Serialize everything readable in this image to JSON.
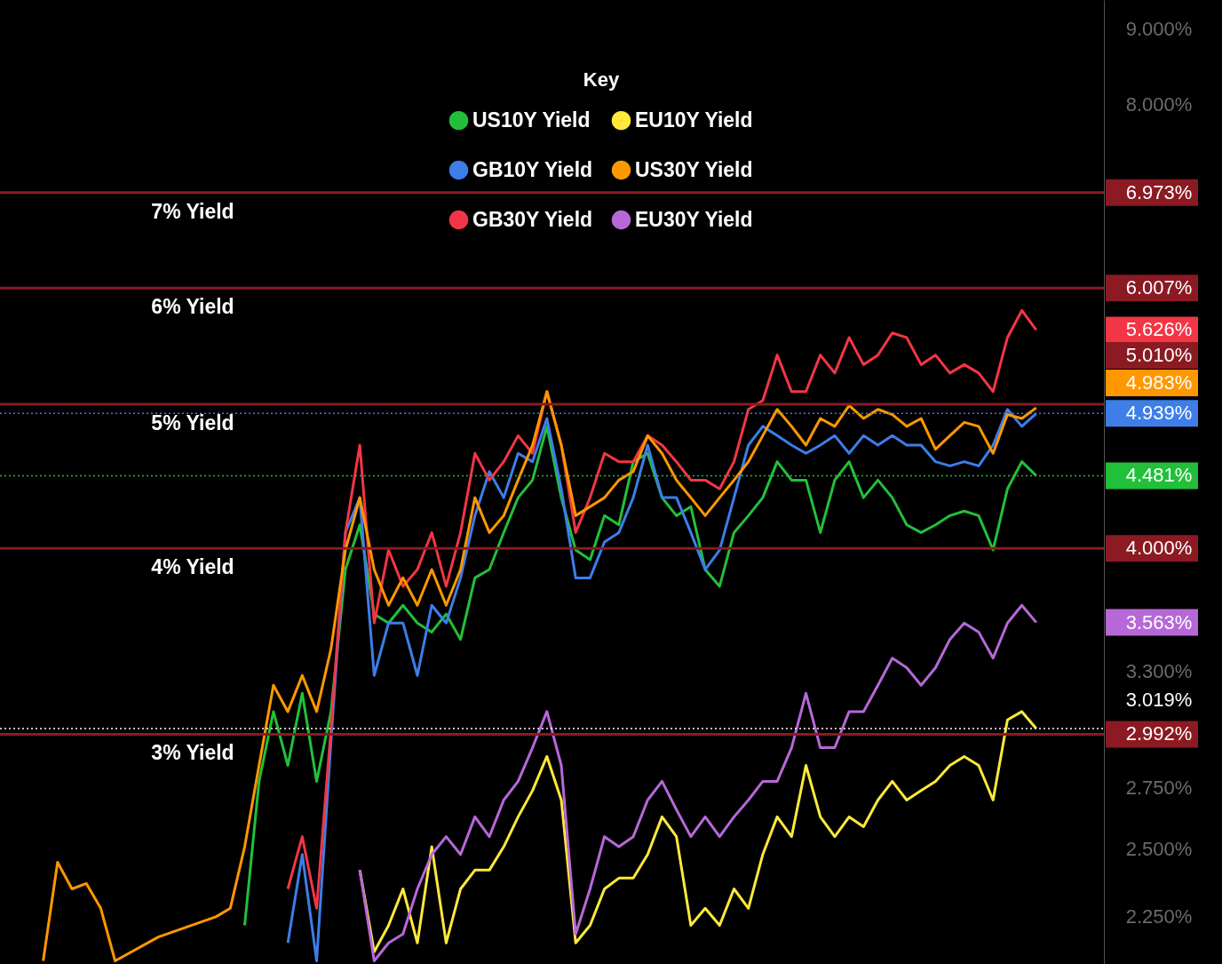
{
  "chart_data": {
    "type": "line",
    "legend_title": "Key",
    "legend": "top",
    "log": true,
    "categories": [
      null,
      null,
      null,
      null,
      null,
      null,
      null,
      null,
      null,
      null,
      null,
      null,
      null,
      null,
      null,
      null,
      null,
      null,
      null,
      null,
      null,
      null,
      null,
      null,
      null,
      null,
      null,
      null,
      null,
      null,
      null,
      null,
      null,
      null,
      null,
      null,
      null,
      null,
      null,
      null,
      null,
      null,
      null,
      null,
      null,
      null,
      null,
      null,
      null,
      null,
      null,
      null,
      null,
      null,
      null,
      null,
      null,
      null,
      null,
      null,
      null,
      null,
      null,
      null,
      null,
      null,
      null,
      null,
      null,
      null
    ],
    "ylim": [
      2.09,
      9.42
    ],
    "yticks": [
      {
        "value": 2.25,
        "label": "2.250%"
      },
      {
        "value": 2.5,
        "label": "2.500%"
      },
      {
        "value": 2.75,
        "label": "2.750%"
      },
      {
        "value": 2.992,
        "label": "2.992%"
      },
      {
        "value": 3.3,
        "label": "3.300%"
      },
      {
        "value": 3.563,
        "label": "3.563%"
      },
      {
        "value": 4.0,
        "label": "4.000%"
      },
      {
        "value": 4.481,
        "label": "4.481%"
      },
      {
        "value": 4.939,
        "label": "4.939%"
      },
      {
        "value": 5.626,
        "label": "5.626%"
      },
      {
        "value": 6.007,
        "label": "6.007%"
      },
      {
        "value": 6.973,
        "label": "6.973%"
      },
      {
        "value": 8,
        "label": "8.000%"
      },
      {
        "value": 9,
        "label": "9.000%"
      }
    ],
    "annotations": [
      "3.019%",
      "4.983%",
      "5.010%"
    ],
    "ref_lines": [
      {
        "axis": "y",
        "value": 6.973,
        "label": "7% Yield",
        "color": "#8b1a22",
        "line_style": "solid"
      },
      {
        "axis": "y",
        "value": 6.007,
        "label": "6% Yield",
        "color": "#8b1a22",
        "line_style": "solid"
      },
      {
        "axis": "y",
        "value": 5.01,
        "label": "5% Yield",
        "color": "#8b1a22",
        "line_style": "solid"
      },
      {
        "axis": "y",
        "value": 4.0,
        "label": "4% Yield",
        "color": "#8b1a22",
        "line_style": "solid"
      },
      {
        "axis": "y",
        "value": 2.992,
        "label": "3% Yield",
        "color": "#8b1a22",
        "line_style": "solid"
      },
      {
        "axis": "y",
        "value": 4.939,
        "label": null,
        "color": "#3d7ee8",
        "line_style": "dotted"
      },
      {
        "axis": "y",
        "value": 4.481,
        "label": null,
        "color": "#22c03a",
        "line_style": "dotted"
      },
      {
        "axis": "y",
        "value": 3.019,
        "label": null,
        "color": "#ffffff",
        "line_style": "dotted"
      }
    ],
    "series": [
      {
        "name": "US10Y Yield",
        "color": "#22c03a",
        "values": [
          null,
          null,
          null,
          null,
          null,
          null,
          null,
          null,
          null,
          null,
          null,
          null,
          null,
          null,
          2.22,
          2.78,
          3.1,
          2.85,
          3.19,
          2.78,
          3.1,
          3.87,
          4.15,
          3.61,
          3.56,
          3.66,
          3.56,
          3.51,
          3.61,
          3.47,
          3.82,
          3.87,
          4.1,
          4.33,
          4.45,
          4.84,
          4.33,
          3.99,
          3.93,
          4.21,
          4.15,
          4.58,
          4.64,
          4.33,
          4.21,
          4.27,
          3.87,
          3.77,
          4.1,
          4.21,
          4.33,
          4.58,
          4.45,
          4.45,
          4.1,
          4.45,
          4.58,
          4.33,
          4.45,
          4.33,
          4.15,
          4.1,
          4.15,
          4.21,
          4.24,
          4.21,
          3.99,
          4.39,
          4.58,
          4.481
        ]
      },
      {
        "name": "GB10Y Yield",
        "color": "#3d7ee8",
        "values": [
          null,
          null,
          null,
          null,
          null,
          null,
          null,
          null,
          null,
          null,
          null,
          null,
          null,
          null,
          null,
          null,
          null,
          2.16,
          2.48,
          2.1,
          2.96,
          4.1,
          4.33,
          3.28,
          3.56,
          3.56,
          3.28,
          3.66,
          3.56,
          3.82,
          4.21,
          4.51,
          4.33,
          4.64,
          4.58,
          4.9,
          4.39,
          3.82,
          3.82,
          4.04,
          4.1,
          4.33,
          4.7,
          4.33,
          4.33,
          4.1,
          3.87,
          3.99,
          4.33,
          4.7,
          4.84,
          4.77,
          4.7,
          4.64,
          4.7,
          4.77,
          4.64,
          4.77,
          4.7,
          4.77,
          4.7,
          4.7,
          4.58,
          4.55,
          4.58,
          4.55,
          4.7,
          4.97,
          4.84,
          4.939
        ]
      },
      {
        "name": "GB30Y Yield",
        "color": "#f23645",
        "values": [
          null,
          null,
          null,
          null,
          null,
          null,
          null,
          null,
          null,
          null,
          null,
          null,
          null,
          null,
          null,
          null,
          null,
          2.35,
          2.55,
          2.28,
          3.02,
          4.1,
          4.7,
          3.56,
          3.99,
          3.77,
          3.87,
          4.1,
          3.77,
          4.1,
          4.64,
          4.45,
          4.58,
          4.77,
          4.64,
          5.11,
          4.7,
          4.1,
          4.33,
          4.64,
          4.58,
          4.58,
          4.77,
          4.7,
          4.58,
          4.45,
          4.45,
          4.39,
          4.58,
          4.97,
          5.04,
          5.41,
          5.11,
          5.11,
          5.41,
          5.26,
          5.56,
          5.33,
          5.41,
          5.6,
          5.56,
          5.33,
          5.41,
          5.26,
          5.33,
          5.26,
          5.11,
          5.56,
          5.8,
          5.626
        ]
      },
      {
        "name": "EU10Y Yield",
        "color": "#ffe93b",
        "values": [
          null,
          null,
          null,
          null,
          null,
          null,
          null,
          null,
          null,
          null,
          null,
          null,
          null,
          null,
          null,
          null,
          null,
          null,
          null,
          null,
          null,
          null,
          2.42,
          2.13,
          2.22,
          2.35,
          2.16,
          2.51,
          2.16,
          2.35,
          2.42,
          2.42,
          2.51,
          2.63,
          2.74,
          2.89,
          2.7,
          2.16,
          2.22,
          2.35,
          2.39,
          2.39,
          2.48,
          2.63,
          2.55,
          2.22,
          2.28,
          2.22,
          2.35,
          2.28,
          2.48,
          2.63,
          2.55,
          2.85,
          2.63,
          2.55,
          2.63,
          2.59,
          2.7,
          2.78,
          2.7,
          2.74,
          2.78,
          2.85,
          2.89,
          2.85,
          2.7,
          3.06,
          3.1,
          3.019
        ]
      },
      {
        "name": "US30Y Yield",
        "color": "#ff9800",
        "values": [
          2.1,
          2.45,
          2.35,
          2.37,
          2.28,
          2.1,
          null,
          null,
          2.18,
          null,
          null,
          null,
          2.25,
          2.28,
          2.51,
          2.85,
          3.23,
          3.1,
          3.28,
          3.1,
          3.42,
          3.99,
          4.33,
          3.87,
          3.66,
          3.82,
          3.66,
          3.87,
          3.66,
          3.87,
          4.33,
          4.1,
          4.21,
          4.45,
          4.7,
          5.11,
          4.7,
          4.21,
          4.27,
          4.33,
          4.45,
          4.51,
          4.77,
          4.64,
          4.45,
          4.33,
          4.21,
          4.33,
          4.45,
          4.58,
          4.77,
          4.97,
          4.84,
          4.7,
          4.9,
          4.84,
          5.0,
          4.9,
          4.97,
          4.93,
          4.84,
          4.9,
          4.67,
          4.77,
          4.87,
          4.84,
          4.64,
          4.93,
          4.9,
          4.983
        ]
      },
      {
        "name": "EU30Y Yield",
        "color": "#b768d8",
        "values": [
          null,
          null,
          null,
          null,
          null,
          null,
          null,
          null,
          null,
          null,
          null,
          null,
          null,
          null,
          null,
          null,
          null,
          null,
          null,
          null,
          null,
          null,
          2.42,
          2.1,
          2.16,
          2.19,
          2.35,
          2.48,
          2.55,
          2.48,
          2.63,
          2.55,
          2.7,
          2.78,
          2.93,
          3.1,
          2.85,
          2.19,
          2.35,
          2.55,
          2.51,
          2.55,
          2.7,
          2.78,
          2.66,
          2.55,
          2.63,
          2.55,
          2.63,
          2.7,
          2.78,
          2.78,
          2.93,
          3.19,
          2.93,
          2.93,
          3.1,
          3.1,
          3.23,
          3.37,
          3.32,
          3.23,
          3.32,
          3.47,
          3.56,
          3.51,
          3.37,
          3.56,
          3.66,
          3.563
        ]
      }
    ]
  }
}
